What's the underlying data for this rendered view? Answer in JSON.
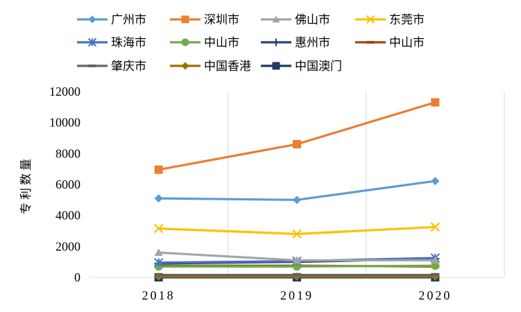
{
  "chart_data": {
    "type": "line",
    "x": [
      "2018",
      "2019",
      "2020"
    ],
    "ylabel": "专利数量",
    "xlabel": "",
    "ylim": [
      0,
      12000
    ],
    "yticks": [
      0,
      2000,
      4000,
      6000,
      8000,
      10000,
      12000
    ],
    "grid": "vertical",
    "legend_position": "top",
    "series": [
      {
        "name": "广州市",
        "color": "#5B9BD5",
        "marker": "diamond",
        "values": [
          5100,
          5000,
          6220
        ]
      },
      {
        "name": "深圳市",
        "color": "#ED7D31",
        "marker": "square",
        "values": [
          6950,
          8600,
          11300
        ]
      },
      {
        "name": "佛山市",
        "color": "#A5A5A5",
        "marker": "triangle",
        "values": [
          1600,
          1100,
          1100
        ]
      },
      {
        "name": "东莞市",
        "color": "#FFC000",
        "marker": "x",
        "values": [
          3150,
          2800,
          3250
        ]
      },
      {
        "name": "珠海市",
        "color": "#4472C4",
        "marker": "asterisk",
        "values": [
          950,
          1050,
          1250
        ]
      },
      {
        "name": "中山市",
        "color": "#70AD47",
        "marker": "circle",
        "values": [
          700,
          700,
          750
        ]
      },
      {
        "name": "惠州市",
        "color": "#264478",
        "marker": "plus",
        "values": [
          900,
          1000,
          1200
        ]
      },
      {
        "name": "中山市",
        "color": "#9E480E",
        "marker": "dash",
        "values": [
          750,
          750,
          700
        ]
      },
      {
        "name": "肇庆市",
        "color": "#636363",
        "marker": "dash",
        "values": [
          150,
          150,
          150
        ]
      },
      {
        "name": "中国香港",
        "color": "#997300",
        "marker": "diamond",
        "values": [
          50,
          50,
          50
        ]
      },
      {
        "name": "中国澳门",
        "color": "#203864",
        "marker": "square",
        "values": [
          0,
          0,
          0
        ]
      }
    ]
  }
}
